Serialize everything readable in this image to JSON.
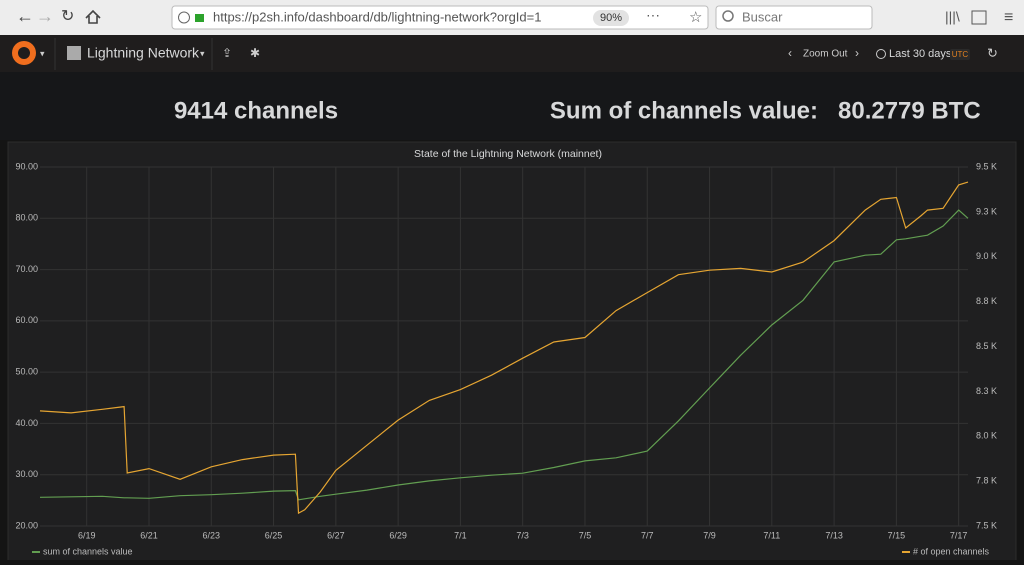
{
  "browser": {
    "url": "https://p2sh.info/dashboard/db/lightning-network?orgId=1",
    "zoom": "90%",
    "search": "Buscar"
  },
  "navbar": {
    "dashboard": "Lightning Network",
    "zoom_out": "Zoom Out",
    "time_range": "Last 30 days",
    "timezone": "UTC"
  },
  "stats": {
    "channels": "9414 channels",
    "sum_label": "Sum of channels value:",
    "sum_value": "80.2779 BTC"
  },
  "chart_data": {
    "type": "line",
    "title": "State of the Lightning Network (mainnet)",
    "x": [
      -1.5,
      -0.5,
      0.5,
      1.2,
      1.3,
      2,
      3,
      4,
      5,
      6,
      6.7,
      6.8,
      7,
      7.5,
      8,
      9,
      10,
      11,
      12,
      13,
      14,
      15,
      16,
      17,
      18,
      19,
      20,
      21,
      22,
      23,
      24,
      25,
      25.5,
      26,
      26.3,
      26.8,
      27,
      27.5,
      28,
      28.3
    ],
    "xlim": [
      -1.5,
      28.3
    ],
    "xticks": [
      {
        "value": 0,
        "label": "6/19"
      },
      {
        "value": 2,
        "label": "6/21"
      },
      {
        "value": 4,
        "label": "6/23"
      },
      {
        "value": 6,
        "label": "6/25"
      },
      {
        "value": 8,
        "label": "6/27"
      },
      {
        "value": 10,
        "label": "6/29"
      },
      {
        "value": 12,
        "label": "7/1"
      },
      {
        "value": 14,
        "label": "7/3"
      },
      {
        "value": 16,
        "label": "7/5"
      },
      {
        "value": 18,
        "label": "7/7"
      },
      {
        "value": 20,
        "label": "7/9"
      },
      {
        "value": 22,
        "label": "7/11"
      },
      {
        "value": 24,
        "label": "7/13"
      },
      {
        "value": 26,
        "label": "7/15"
      },
      {
        "value": 28,
        "label": "7/17"
      }
    ],
    "ylim": [
      20,
      90
    ],
    "yticks": [
      {
        "value": 20,
        "label": "20.00"
      },
      {
        "value": 30,
        "label": "30.00"
      },
      {
        "value": 40,
        "label": "40.00"
      },
      {
        "value": 50,
        "label": "50.00"
      },
      {
        "value": 60,
        "label": "60.00"
      },
      {
        "value": 70,
        "label": "70.00"
      },
      {
        "value": 80,
        "label": "80.00"
      },
      {
        "value": 90,
        "label": "90.00"
      }
    ],
    "y2lim": [
      7500,
      9500
    ],
    "y2ticks": [
      {
        "value": 7500,
        "label": "7.5 K"
      },
      {
        "value": 7750,
        "label": "7.8 K"
      },
      {
        "value": 8000,
        "label": "8.0 K"
      },
      {
        "value": 8250,
        "label": "8.3 K"
      },
      {
        "value": 8500,
        "label": "8.5 K"
      },
      {
        "value": 8750,
        "label": "8.8 K"
      },
      {
        "value": 9000,
        "label": "9.0 K"
      },
      {
        "value": 9250,
        "label": "9.3 K"
      },
      {
        "value": 9500,
        "label": "9.5 K"
      }
    ],
    "grid": true,
    "series": [
      {
        "name": "sum of channels value",
        "color": "#629e51",
        "values": [
          25.6,
          25.7,
          25.8,
          25.5,
          25.5,
          25.4,
          25.9,
          26.1,
          26.4,
          26.8,
          26.9,
          25.1,
          25.3,
          25.8,
          26.2,
          27.0,
          28.0,
          28.8,
          29.4,
          29.9,
          30.3,
          31.4,
          32.7,
          33.3,
          34.6,
          40.5,
          46.9,
          53.3,
          59.2,
          64.0,
          71.5,
          72.8,
          73.0,
          75.8,
          76.0,
          76.5,
          76.7,
          78.5,
          81.6,
          80.0
        ]
      },
      {
        "name": "# of open channels",
        "color": "#e5a532",
        "axis": "y2",
        "values": [
          8141,
          8130,
          8150,
          8165,
          7795,
          7820,
          7760,
          7830,
          7870,
          7895,
          7900,
          7572,
          7590,
          7690,
          7810,
          7950,
          8090,
          8200,
          8260,
          8340,
          8435,
          8525,
          8550,
          8700,
          8800,
          8900,
          8925,
          8935,
          8915,
          8970,
          9090,
          9260,
          9320,
          9330,
          9160,
          9230,
          9260,
          9270,
          9400,
          9416
        ]
      }
    ]
  }
}
